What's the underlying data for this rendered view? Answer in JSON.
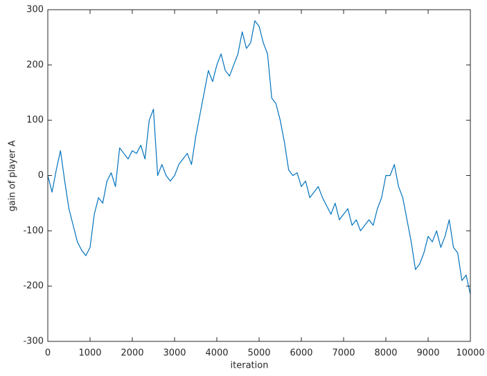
{
  "chart_data": {
    "type": "line",
    "xlabel": "iteration",
    "ylabel": "gain of player A",
    "x": [
      0,
      100,
      200,
      300,
      400,
      500,
      600,
      700,
      800,
      900,
      1000,
      1100,
      1200,
      1300,
      1400,
      1500,
      1600,
      1700,
      1800,
      1900,
      2000,
      2100,
      2200,
      2300,
      2400,
      2500,
      2600,
      2700,
      2800,
      2900,
      3000,
      3100,
      3200,
      3300,
      3400,
      3500,
      3600,
      3700,
      3800,
      3900,
      4000,
      4100,
      4200,
      4300,
      4400,
      4500,
      4600,
      4700,
      4800,
      4900,
      5000,
      5100,
      5200,
      5300,
      5400,
      5500,
      5600,
      5700,
      5800,
      5900,
      6000,
      6100,
      6200,
      6300,
      6400,
      6500,
      6600,
      6700,
      6800,
      6900,
      7000,
      7100,
      7200,
      7300,
      7400,
      7500,
      7600,
      7700,
      7800,
      7900,
      8000,
      8100,
      8200,
      8300,
      8400,
      8500,
      8600,
      8700,
      8800,
      8900,
      9000,
      9100,
      9200,
      9300,
      9400,
      9500,
      9600,
      9700,
      9800,
      9900,
      10000
    ],
    "series": [
      {
        "name": "gain of player A",
        "color": "#0072bd",
        "values": [
          0,
          -30,
          10,
          45,
          -10,
          -60,
          -90,
          -120,
          -135,
          -145,
          -130,
          -70,
          -40,
          -50,
          -10,
          5,
          -20,
          50,
          40,
          30,
          45,
          40,
          55,
          30,
          100,
          120,
          0,
          20,
          0,
          -10,
          0,
          20,
          30,
          40,
          20,
          70,
          110,
          150,
          190,
          170,
          200,
          220,
          190,
          180,
          200,
          220,
          260,
          230,
          240,
          280,
          270,
          240,
          220,
          140,
          130,
          100,
          60,
          10,
          0,
          5,
          -20,
          -10,
          -40,
          -30,
          -20,
          -40,
          -55,
          -70,
          -50,
          -80,
          -70,
          -60,
          -90,
          -80,
          -100,
          -90,
          -80,
          -90,
          -60,
          -40,
          0,
          0,
          20,
          -20,
          -40,
          -80,
          -120,
          -170,
          -160,
          -140,
          -110,
          -120,
          -100,
          -130,
          -110,
          -80,
          -130,
          -140,
          -190,
          -180,
          -215
        ]
      }
    ],
    "xlim": [
      0,
      10000
    ],
    "ylim": [
      -300,
      300
    ],
    "xticks": [
      0,
      1000,
      2000,
      3000,
      4000,
      5000,
      6000,
      7000,
      8000,
      9000,
      10000
    ],
    "yticks": [
      -300,
      -200,
      -100,
      0,
      100,
      200,
      300
    ],
    "grid": false
  }
}
